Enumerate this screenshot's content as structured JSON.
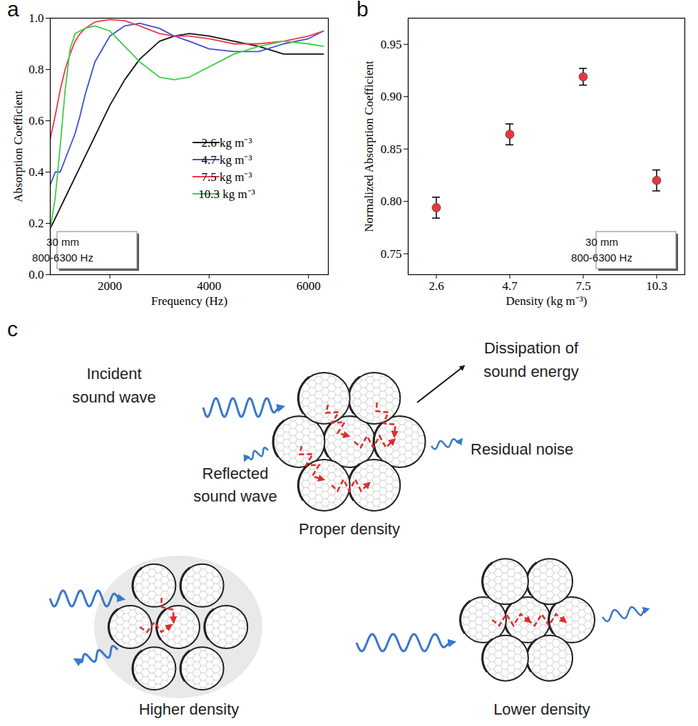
{
  "chart_data": [
    {
      "type": "line",
      "title": "a",
      "x_label": "Frequency (Hz)",
      "y_label": "Absorption Coefficient",
      "x": [
        800,
        900,
        1000,
        1100,
        1200,
        1300,
        1400,
        1500,
        1700,
        2000,
        2300,
        2600,
        3000,
        3300,
        3600,
        4000,
        4500,
        5000,
        5500,
        6000,
        6300
      ],
      "series": [
        {
          "name": "2.6 kg m⁻³",
          "color": "#111111",
          "values": [
            0.18,
            0.22,
            0.26,
            0.3,
            0.34,
            0.38,
            0.42,
            0.46,
            0.54,
            0.66,
            0.76,
            0.84,
            0.91,
            0.93,
            0.94,
            0.93,
            0.91,
            0.89,
            0.86,
            0.86,
            0.86
          ]
        },
        {
          "name": "4.7 kg m⁻³",
          "color": "#3f4fd8",
          "values": [
            0.35,
            0.4,
            0.4,
            0.45,
            0.5,
            0.55,
            0.62,
            0.7,
            0.83,
            0.93,
            0.97,
            0.98,
            0.96,
            0.93,
            0.91,
            0.88,
            0.87,
            0.87,
            0.9,
            0.92,
            0.95
          ]
        },
        {
          "name": "7.5 kg m⁻³",
          "color": "#ee3b47",
          "values": [
            0.53,
            0.62,
            0.72,
            0.8,
            0.86,
            0.91,
            0.94,
            0.96,
            0.985,
            0.995,
            0.99,
            0.97,
            0.94,
            0.93,
            0.93,
            0.92,
            0.9,
            0.9,
            0.91,
            0.93,
            0.95
          ]
        },
        {
          "name": "10.3 kg m⁻³",
          "color": "#40d040",
          "values": [
            0.18,
            0.3,
            0.5,
            0.72,
            0.88,
            0.94,
            0.95,
            0.96,
            0.97,
            0.95,
            0.89,
            0.83,
            0.77,
            0.76,
            0.77,
            0.81,
            0.86,
            0.89,
            0.91,
            0.9,
            0.89
          ]
        }
      ],
      "xlim": [
        800,
        6400
      ],
      "xticks": [
        2000,
        4000,
        6000
      ],
      "ylim": [
        0,
        1
      ],
      "yticks": [
        {
          "value": 0,
          "label": "0.0"
        },
        0.2,
        0.4,
        0.6,
        0.8,
        {
          "value": 1,
          "label": "1.0"
        }
      ],
      "legend": "bottom-right",
      "annotations": [
        "30 mm",
        "800-6300 Hz"
      ]
    },
    {
      "type": "scatter",
      "title": "b",
      "x_label": "Density (kg m⁻³)",
      "y_label": "Normalized Absorption Coefficient",
      "categories": [
        "2.6",
        "4.7",
        "7.5",
        "10.3"
      ],
      "values": [
        0.794,
        0.864,
        0.919,
        0.82
      ],
      "errors": [
        0.01,
        0.01,
        0.008,
        0.01
      ],
      "color": "#e8373c",
      "marker": "circle",
      "ylim": [
        0.73,
        0.975
      ],
      "yticks": [
        0.75,
        {
          "value": 0.8,
          "label": "0.80"
        },
        0.85,
        {
          "value": 0.9,
          "label": "0.90"
        },
        0.95
      ],
      "annotations": [
        "30 mm",
        "800-6300 Hz"
      ]
    }
  ],
  "diagram": {
    "title": "c",
    "proper": {
      "label": "Proper density",
      "incident": [
        "Incident",
        "sound wave"
      ],
      "reflected": [
        "Reflected",
        "sound wave"
      ],
      "dissipation": [
        "Dissipation of",
        "sound energy"
      ],
      "residual": "Residual noise"
    },
    "higher": {
      "label": "Higher density"
    },
    "lower": {
      "label": "Lower density"
    }
  }
}
